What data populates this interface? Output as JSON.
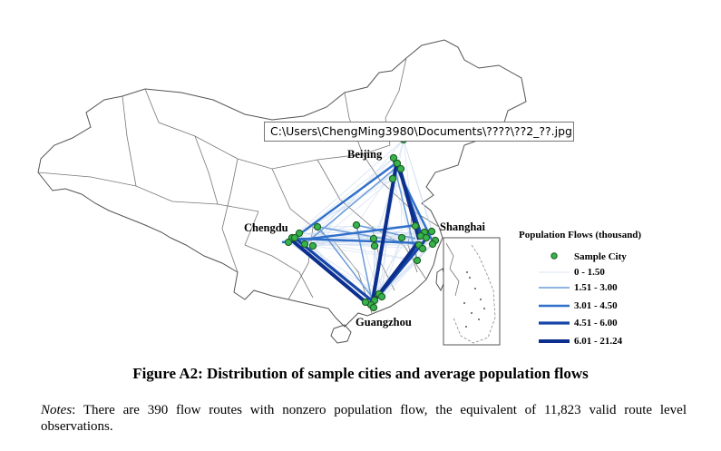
{
  "tooltip": "C:\\Users\\ChengMing3980\\Documents\\????\\??2_??.jpg",
  "map": {
    "city_labels": {
      "beijing": "Beijing",
      "chengdu": "Chengdu",
      "shanghai": "Shanghai",
      "guangzhou": "Guangzhou"
    },
    "colors": {
      "boundary": "#555555",
      "city_fill": "#37b24d",
      "city_stroke": "#1b5e20",
      "flow_dark": "#0c2e8c"
    }
  },
  "legend": {
    "title": "Population Flows (thousand)",
    "sample_city": "Sample City",
    "classes": [
      {
        "label": "0 - 1.50",
        "color": "#dbe6f5"
      },
      {
        "label": "1.51 - 3.00",
        "color": "#6b9bd8"
      },
      {
        "label": "3.01 - 4.50",
        "color": "#2f6fc9"
      },
      {
        "label": "4.51 - 6.00",
        "color": "#1746a8"
      },
      {
        "label": "6.01 - 21.24",
        "color": "#0c2e8c"
      }
    ]
  },
  "caption": "Figure A2: Distribution of sample cities and average population flows",
  "notes": {
    "label": "Notes",
    "text": ": There are 390 flow routes with nonzero population flow, the equivalent of 11,823 valid route level observations."
  }
}
